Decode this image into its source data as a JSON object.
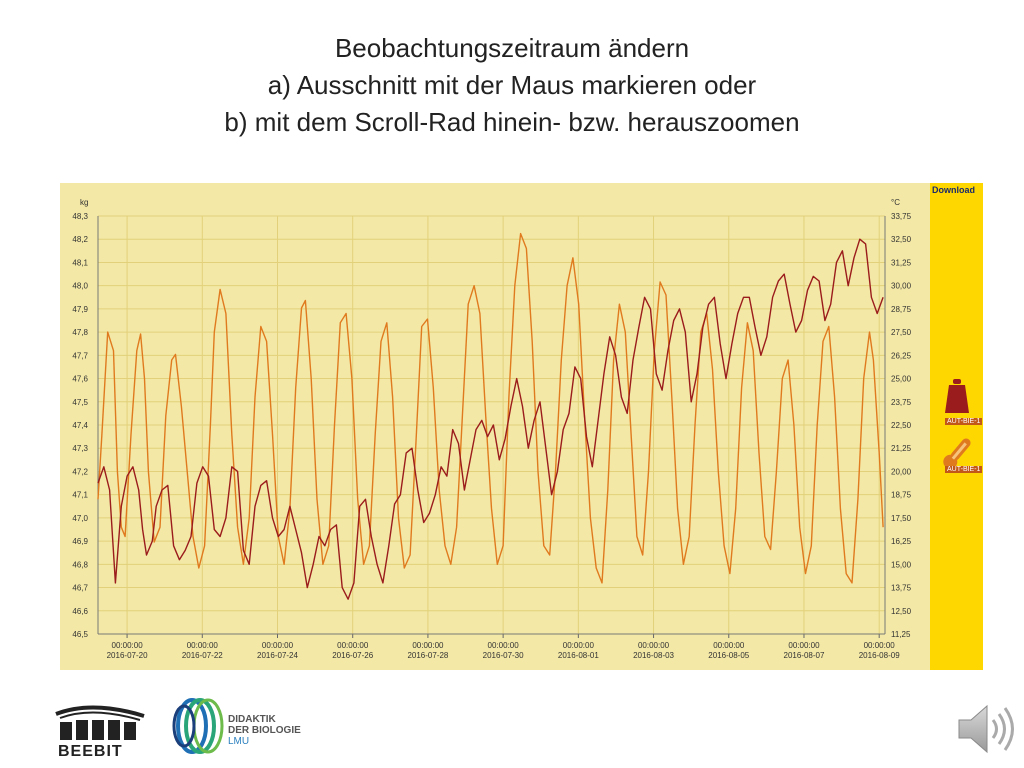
{
  "slide": {
    "title_lines": [
      "Beobachtungszeitraum ändern",
      "a) Ausschnitt mit der Maus markieren oder",
      "b) mit dem Scroll-Rad hinein- bzw. herauszoomen"
    ]
  },
  "side_panel": {
    "download_label": "Download",
    "legend": [
      {
        "label": "AUT-BIE-1",
        "icon": "weight-icon"
      },
      {
        "label": "AUT-BIE-1",
        "icon": "thermometer-icon"
      }
    ]
  },
  "logos": {
    "beebit": "BEEBIT",
    "didaktik": [
      "DIDAKTIK",
      "DER BIOLOGIE",
      "LMU"
    ]
  },
  "colors": {
    "plot_bg": "#f3e8a6",
    "panel": "#ffd700",
    "weight": "#9b1c1c",
    "temperature": "#e07a1f",
    "grid": "#e2d17a"
  },
  "chart_data": {
    "type": "line",
    "left_axis": {
      "unit": "kg",
      "ticks": [
        "48,3",
        "48,2",
        "48,1",
        "48,0",
        "47,9",
        "47,8",
        "47,7",
        "47,6",
        "47,5",
        "47,4",
        "47,3",
        "47,2",
        "47,1",
        "47,0",
        "46,9",
        "46,8",
        "46,7",
        "46,6",
        "46,5"
      ],
      "range": [
        46.5,
        48.3
      ]
    },
    "right_axis": {
      "unit": "°C",
      "ticks": [
        "33,75",
        "32,50",
        "31,25",
        "30,00",
        "28,75",
        "27,50",
        "26,25",
        "25,00",
        "23,75",
        "22,50",
        "21,25",
        "20,00",
        "18,75",
        "17,50",
        "16,25",
        "15,00",
        "13,75",
        "12,50",
        "11,25"
      ],
      "range": [
        11.25,
        33.75
      ]
    },
    "x_ticks": [
      {
        "time": "00:00:00",
        "date": "2016-07-20"
      },
      {
        "time": "00:00:00",
        "date": "2016-07-22"
      },
      {
        "time": "00:00:00",
        "date": "2016-07-24"
      },
      {
        "time": "00:00:00",
        "date": "2016-07-26"
      },
      {
        "time": "00:00:00",
        "date": "2016-07-28"
      },
      {
        "time": "00:00:00",
        "date": "2016-07-30"
      },
      {
        "time": "00:00:00",
        "date": "2016-08-01"
      },
      {
        "time": "00:00:00",
        "date": "2016-08-03"
      },
      {
        "time": "00:00:00",
        "date": "2016-08-05"
      },
      {
        "time": "00:00:00",
        "date": "2016-08-07"
      },
      {
        "time": "00:00:00",
        "date": "2016-08-09"
      }
    ],
    "x_range_days": [
      "2016-07-18T12:00",
      "2016-08-09T12:00"
    ],
    "series": [
      {
        "axis": "left",
        "color": "#9b1c1c",
        "points": [
          [
            0.0,
            47.15
          ],
          [
            0.3,
            47.22
          ],
          [
            0.6,
            47.12
          ],
          [
            0.9,
            46.72
          ],
          [
            1.2,
            47.05
          ],
          [
            1.5,
            47.18
          ],
          [
            1.8,
            47.22
          ],
          [
            2.1,
            47.12
          ],
          [
            2.3,
            46.95
          ],
          [
            2.5,
            46.84
          ],
          [
            2.8,
            46.9
          ],
          [
            3.0,
            47.05
          ],
          [
            3.3,
            47.12
          ],
          [
            3.6,
            47.14
          ],
          [
            3.9,
            46.88
          ],
          [
            4.2,
            46.82
          ],
          [
            4.5,
            46.86
          ],
          [
            4.8,
            46.92
          ],
          [
            5.1,
            47.15
          ],
          [
            5.4,
            47.22
          ],
          [
            5.7,
            47.18
          ],
          [
            6.0,
            46.95
          ],
          [
            6.3,
            46.92
          ],
          [
            6.6,
            47.0
          ],
          [
            6.9,
            47.22
          ],
          [
            7.2,
            47.2
          ],
          [
            7.5,
            46.86
          ],
          [
            7.8,
            46.8
          ],
          [
            8.1,
            47.05
          ],
          [
            8.4,
            47.14
          ],
          [
            8.7,
            47.16
          ],
          [
            9.0,
            47.0
          ],
          [
            9.3,
            46.92
          ],
          [
            9.6,
            46.95
          ],
          [
            9.9,
            47.05
          ],
          [
            10.2,
            46.95
          ],
          [
            10.5,
            46.85
          ],
          [
            10.8,
            46.7
          ],
          [
            11.1,
            46.8
          ],
          [
            11.4,
            46.92
          ],
          [
            11.7,
            46.88
          ],
          [
            12.0,
            46.95
          ],
          [
            12.3,
            46.97
          ],
          [
            12.6,
            46.7
          ],
          [
            12.9,
            46.65
          ],
          [
            13.2,
            46.72
          ],
          [
            13.5,
            47.05
          ],
          [
            13.8,
            47.08
          ],
          [
            14.1,
            46.92
          ],
          [
            14.4,
            46.8
          ],
          [
            14.7,
            46.72
          ],
          [
            15.0,
            46.88
          ],
          [
            15.3,
            47.06
          ],
          [
            15.6,
            47.1
          ],
          [
            15.9,
            47.28
          ],
          [
            16.2,
            47.3
          ],
          [
            16.5,
            47.12
          ],
          [
            16.8,
            46.98
          ],
          [
            17.1,
            47.02
          ],
          [
            17.4,
            47.1
          ],
          [
            17.7,
            47.22
          ],
          [
            18.0,
            47.18
          ],
          [
            18.3,
            47.38
          ],
          [
            18.6,
            47.32
          ],
          [
            18.9,
            47.12
          ],
          [
            19.2,
            47.25
          ],
          [
            19.5,
            47.38
          ],
          [
            19.8,
            47.42
          ],
          [
            20.1,
            47.35
          ],
          [
            20.4,
            47.4
          ],
          [
            20.7,
            47.25
          ],
          [
            21.0,
            47.34
          ],
          [
            21.3,
            47.48
          ],
          [
            21.6,
            47.6
          ],
          [
            21.9,
            47.48
          ],
          [
            22.2,
            47.3
          ],
          [
            22.5,
            47.42
          ],
          [
            22.8,
            47.5
          ],
          [
            23.1,
            47.3
          ],
          [
            23.4,
            47.1
          ],
          [
            23.7,
            47.2
          ],
          [
            24.0,
            47.38
          ],
          [
            24.3,
            47.45
          ],
          [
            24.6,
            47.65
          ],
          [
            24.9,
            47.6
          ],
          [
            25.2,
            47.35
          ],
          [
            25.5,
            47.22
          ],
          [
            25.8,
            47.42
          ],
          [
            26.1,
            47.62
          ],
          [
            26.4,
            47.78
          ],
          [
            26.7,
            47.7
          ],
          [
            27.0,
            47.52
          ],
          [
            27.3,
            47.45
          ],
          [
            27.6,
            47.68
          ],
          [
            27.9,
            47.82
          ],
          [
            28.2,
            47.95
          ],
          [
            28.5,
            47.9
          ],
          [
            28.8,
            47.62
          ],
          [
            29.1,
            47.55
          ],
          [
            29.4,
            47.72
          ],
          [
            29.7,
            47.85
          ],
          [
            30.0,
            47.9
          ],
          [
            30.3,
            47.8
          ],
          [
            30.6,
            47.5
          ],
          [
            30.9,
            47.62
          ],
          [
            31.2,
            47.82
          ],
          [
            31.5,
            47.92
          ],
          [
            31.8,
            47.95
          ],
          [
            32.1,
            47.75
          ],
          [
            32.4,
            47.6
          ],
          [
            32.7,
            47.75
          ],
          [
            33.0,
            47.88
          ],
          [
            33.3,
            47.95
          ],
          [
            33.6,
            47.95
          ],
          [
            33.9,
            47.82
          ],
          [
            34.2,
            47.7
          ],
          [
            34.5,
            47.78
          ],
          [
            34.8,
            47.95
          ],
          [
            35.1,
            48.02
          ],
          [
            35.4,
            48.05
          ],
          [
            35.7,
            47.92
          ],
          [
            36.0,
            47.8
          ],
          [
            36.3,
            47.85
          ],
          [
            36.6,
            47.98
          ],
          [
            36.9,
            48.04
          ],
          [
            37.2,
            48.02
          ],
          [
            37.5,
            47.85
          ],
          [
            37.8,
            47.92
          ],
          [
            38.1,
            48.1
          ],
          [
            38.4,
            48.15
          ],
          [
            38.7,
            48.0
          ],
          [
            39.0,
            48.12
          ],
          [
            39.3,
            48.2
          ],
          [
            39.6,
            48.18
          ],
          [
            39.9,
            47.95
          ],
          [
            40.2,
            47.88
          ],
          [
            40.5,
            47.95
          ]
        ]
      },
      {
        "axis": "right",
        "color": "#e07a1f",
        "points": [
          [
            0.0,
            18.5
          ],
          [
            0.2,
            22.0
          ],
          [
            0.5,
            27.5
          ],
          [
            0.8,
            26.5
          ],
          [
            1.0,
            20.0
          ],
          [
            1.2,
            17.0
          ],
          [
            1.4,
            16.5
          ],
          [
            1.7,
            22.0
          ],
          [
            2.0,
            26.5
          ],
          [
            2.2,
            27.4
          ],
          [
            2.4,
            25.0
          ],
          [
            2.6,
            20.0
          ],
          [
            2.9,
            16.2
          ],
          [
            3.2,
            17.0
          ],
          [
            3.5,
            23.0
          ],
          [
            3.8,
            26.0
          ],
          [
            4.0,
            26.3
          ],
          [
            4.3,
            23.5
          ],
          [
            4.6,
            20.0
          ],
          [
            4.9,
            16.5
          ],
          [
            5.2,
            14.8
          ],
          [
            5.5,
            16.0
          ],
          [
            5.8,
            22.5
          ],
          [
            6.0,
            27.5
          ],
          [
            6.3,
            29.8
          ],
          [
            6.6,
            28.5
          ],
          [
            6.9,
            22.0
          ],
          [
            7.2,
            17.0
          ],
          [
            7.5,
            15.0
          ],
          [
            7.8,
            17.5
          ],
          [
            8.1,
            24.0
          ],
          [
            8.4,
            27.8
          ],
          [
            8.7,
            27.0
          ],
          [
            9.0,
            22.0
          ],
          [
            9.3,
            16.5
          ],
          [
            9.6,
            15.0
          ],
          [
            9.9,
            18.0
          ],
          [
            10.2,
            24.5
          ],
          [
            10.5,
            28.8
          ],
          [
            10.7,
            29.2
          ],
          [
            11.0,
            25.0
          ],
          [
            11.3,
            18.5
          ],
          [
            11.6,
            15.0
          ],
          [
            11.9,
            16.0
          ],
          [
            12.2,
            22.5
          ],
          [
            12.5,
            28.0
          ],
          [
            12.8,
            28.5
          ],
          [
            13.1,
            25.0
          ],
          [
            13.4,
            18.5
          ],
          [
            13.7,
            15.0
          ],
          [
            14.0,
            16.0
          ],
          [
            14.3,
            22.0
          ],
          [
            14.6,
            27.0
          ],
          [
            14.9,
            28.0
          ],
          [
            15.2,
            24.0
          ],
          [
            15.5,
            17.5
          ],
          [
            15.8,
            14.8
          ],
          [
            16.1,
            15.5
          ],
          [
            16.4,
            21.5
          ],
          [
            16.7,
            27.8
          ],
          [
            17.0,
            28.2
          ],
          [
            17.3,
            24.5
          ],
          [
            17.6,
            19.0
          ],
          [
            17.9,
            16.0
          ],
          [
            18.2,
            15.0
          ],
          [
            18.5,
            17.0
          ],
          [
            18.8,
            23.0
          ],
          [
            19.1,
            29.0
          ],
          [
            19.4,
            30.0
          ],
          [
            19.7,
            28.5
          ],
          [
            20.0,
            23.0
          ],
          [
            20.3,
            18.0
          ],
          [
            20.6,
            15.0
          ],
          [
            20.9,
            16.0
          ],
          [
            21.2,
            24.0
          ],
          [
            21.5,
            30.0
          ],
          [
            21.8,
            32.8
          ],
          [
            22.1,
            32.0
          ],
          [
            22.4,
            27.0
          ],
          [
            22.7,
            20.0
          ],
          [
            23.0,
            16.0
          ],
          [
            23.3,
            15.5
          ],
          [
            23.6,
            20.0
          ],
          [
            23.9,
            26.0
          ],
          [
            24.2,
            30.0
          ],
          [
            24.5,
            31.5
          ],
          [
            24.8,
            29.0
          ],
          [
            25.1,
            23.0
          ],
          [
            25.4,
            17.5
          ],
          [
            25.7,
            14.8
          ],
          [
            26.0,
            14.0
          ],
          [
            26.3,
            19.0
          ],
          [
            26.6,
            26.0
          ],
          [
            26.9,
            29.0
          ],
          [
            27.2,
            27.5
          ],
          [
            27.5,
            22.0
          ],
          [
            27.8,
            16.5
          ],
          [
            28.1,
            15.5
          ],
          [
            28.4,
            20.0
          ],
          [
            28.7,
            26.5
          ],
          [
            29.0,
            30.2
          ],
          [
            29.3,
            29.5
          ],
          [
            29.6,
            24.0
          ],
          [
            29.9,
            18.0
          ],
          [
            30.2,
            15.0
          ],
          [
            30.5,
            16.5
          ],
          [
            30.8,
            22.5
          ],
          [
            31.1,
            27.5
          ],
          [
            31.4,
            28.5
          ],
          [
            31.7,
            25.5
          ],
          [
            32.0,
            20.0
          ],
          [
            32.3,
            16.0
          ],
          [
            32.6,
            14.5
          ],
          [
            32.9,
            18.0
          ],
          [
            33.2,
            24.5
          ],
          [
            33.5,
            28.0
          ],
          [
            33.8,
            26.5
          ],
          [
            34.1,
            21.0
          ],
          [
            34.4,
            16.5
          ],
          [
            34.7,
            15.8
          ],
          [
            35.0,
            20.0
          ],
          [
            35.3,
            25.0
          ],
          [
            35.6,
            26.0
          ],
          [
            35.9,
            22.5
          ],
          [
            36.2,
            17.0
          ],
          [
            36.5,
            14.5
          ],
          [
            36.8,
            16.0
          ],
          [
            37.1,
            22.5
          ],
          [
            37.4,
            27.0
          ],
          [
            37.7,
            27.8
          ],
          [
            38.0,
            24.0
          ],
          [
            38.3,
            18.0
          ],
          [
            38.6,
            14.5
          ],
          [
            38.9,
            14.0
          ],
          [
            39.2,
            18.5
          ],
          [
            39.5,
            25.0
          ],
          [
            39.8,
            27.5
          ],
          [
            40.0,
            26.0
          ],
          [
            40.3,
            21.0
          ],
          [
            40.5,
            17.0
          ]
        ]
      }
    ]
  }
}
